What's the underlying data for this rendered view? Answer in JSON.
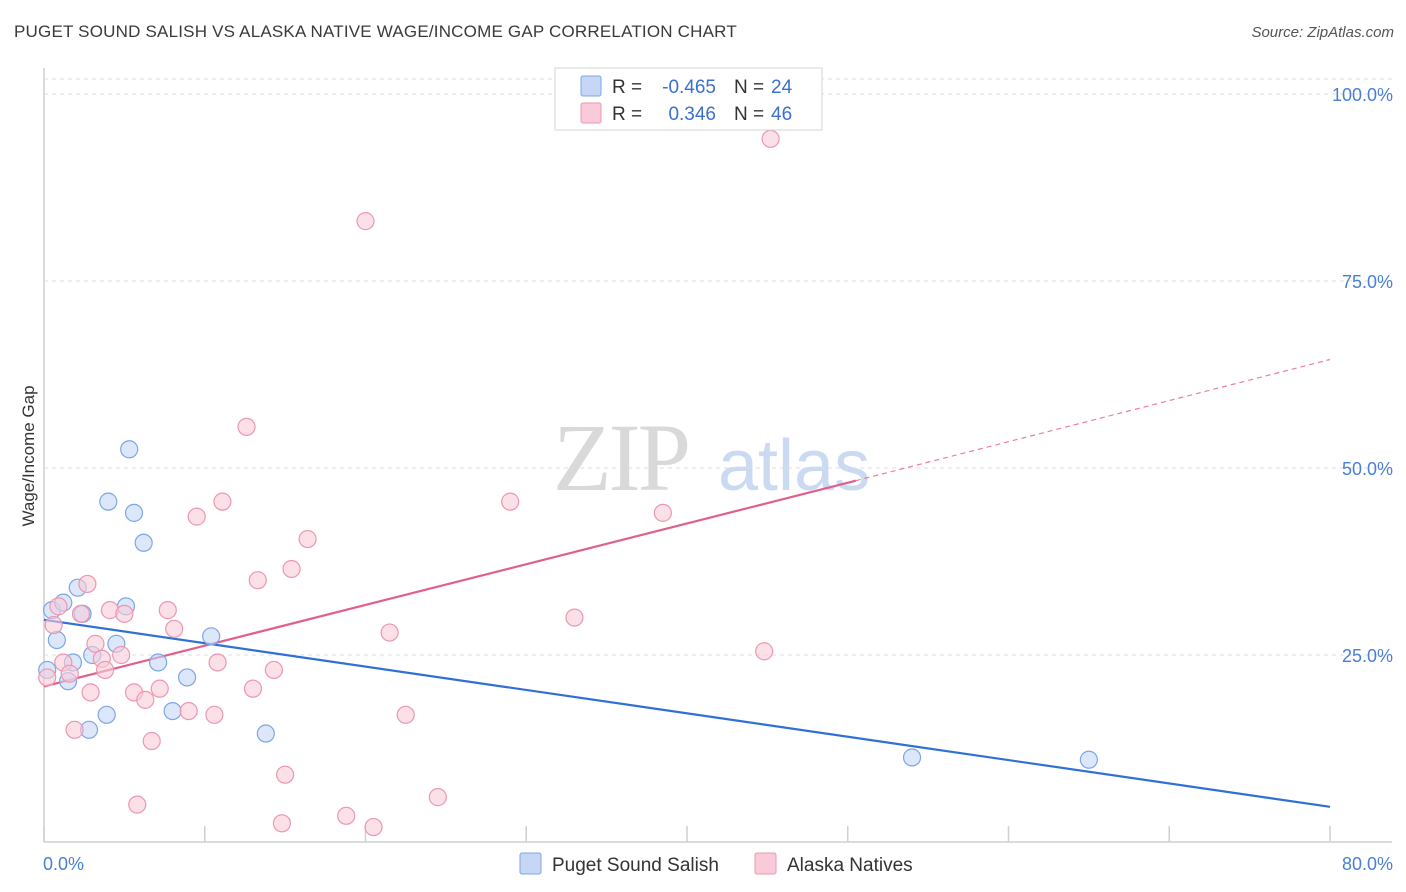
{
  "title": "PUGET SOUND SALISH VS ALASKA NATIVE WAGE/INCOME GAP CORRELATION CHART",
  "source": "Source: ZipAtlas.com",
  "watermark": {
    "zip": "ZIP",
    "atlas": "atlas"
  },
  "colors": {
    "blue_fill": "#c5d7f5",
    "blue_stroke": "#7da6e6",
    "blue_line": "#2f6fd6",
    "pink_fill": "#f9cbd9",
    "pink_stroke": "#ec97b2",
    "pink_line": "#e05f8d",
    "grid": "#dcdcdc",
    "tick_text": "#4a7fd4"
  },
  "legend": {
    "rows": [
      {
        "r_label": "R = ",
        "r_value": "-0.465",
        "n_label": "N = ",
        "n_value": "24",
        "series": "blue"
      },
      {
        "r_label": "R = ",
        "r_value": "0.346",
        "n_label": "N = ",
        "n_value": "46",
        "series": "pink"
      }
    ]
  },
  "chart_data": {
    "type": "scatter",
    "title": "PUGET SOUND SALISH VS ALASKA NATIVE WAGE/INCOME GAP CORRELATION CHART",
    "xlabel": "",
    "ylabel": "Wage/Income Gap",
    "xlim": [
      0,
      80
    ],
    "ylim": [
      0,
      102
    ],
    "x_tick_labels": [
      {
        "value": 0,
        "label": "0.0%"
      },
      {
        "value": 80,
        "label": "80.0%"
      }
    ],
    "y_tick_labels": [
      {
        "value": 25,
        "label": "25.0%"
      },
      {
        "value": 50,
        "label": "50.0%"
      },
      {
        "value": 75,
        "label": "75.0%"
      },
      {
        "value": 100,
        "label": "100.0%"
      }
    ],
    "y_gridlines": [
      25,
      50,
      75,
      100
    ],
    "series": [
      {
        "name": "Puget Sound Salish",
        "color": "blue",
        "points": [
          [
            0.2,
            23.0
          ],
          [
            0.5,
            31.0
          ],
          [
            0.8,
            27.0
          ],
          [
            1.2,
            32.0
          ],
          [
            1.5,
            21.5
          ],
          [
            1.8,
            24.0
          ],
          [
            2.1,
            34.0
          ],
          [
            2.4,
            30.5
          ],
          [
            2.8,
            15.0
          ],
          [
            3.0,
            25.0
          ],
          [
            3.9,
            17.0
          ],
          [
            4.0,
            45.5
          ],
          [
            4.5,
            26.5
          ],
          [
            5.1,
            31.5
          ],
          [
            5.3,
            52.5
          ],
          [
            5.6,
            44.0
          ],
          [
            6.2,
            40.0
          ],
          [
            7.1,
            24.0
          ],
          [
            8.0,
            17.5
          ],
          [
            8.9,
            22.0
          ],
          [
            10.4,
            27.5
          ],
          [
            13.8,
            14.5
          ],
          [
            54.0,
            11.3
          ],
          [
            65.0,
            11.0
          ]
        ],
        "trend": {
          "x_start": 0,
          "y_start": 29.7,
          "x_end": 80,
          "y_end": 4.7,
          "dashed_extension": false
        }
      },
      {
        "name": "Alaska Natives",
        "color": "pink",
        "points": [
          [
            0.2,
            22.0
          ],
          [
            0.6,
            29.0
          ],
          [
            0.9,
            31.5
          ],
          [
            1.2,
            24.0
          ],
          [
            1.6,
            22.5
          ],
          [
            1.9,
            15.0
          ],
          [
            2.3,
            30.5
          ],
          [
            2.7,
            34.5
          ],
          [
            2.9,
            20.0
          ],
          [
            3.2,
            26.5
          ],
          [
            3.6,
            24.5
          ],
          [
            3.8,
            23.0
          ],
          [
            4.1,
            31.0
          ],
          [
            4.8,
            25.0
          ],
          [
            5.0,
            30.5
          ],
          [
            5.6,
            20.0
          ],
          [
            5.8,
            5.0
          ],
          [
            6.3,
            19.0
          ],
          [
            6.7,
            13.5
          ],
          [
            7.2,
            20.5
          ],
          [
            7.7,
            31.0
          ],
          [
            8.1,
            28.5
          ],
          [
            9.0,
            17.5
          ],
          [
            9.5,
            43.5
          ],
          [
            10.6,
            17.0
          ],
          [
            10.8,
            24.0
          ],
          [
            11.1,
            45.5
          ],
          [
            12.6,
            55.5
          ],
          [
            13.0,
            20.5
          ],
          [
            13.3,
            35.0
          ],
          [
            14.3,
            23.0
          ],
          [
            14.8,
            2.5
          ],
          [
            15.0,
            9.0
          ],
          [
            15.4,
            36.5
          ],
          [
            16.4,
            40.5
          ],
          [
            18.8,
            3.5
          ],
          [
            20.0,
            83.0
          ],
          [
            20.5,
            2.0
          ],
          [
            21.5,
            28.0
          ],
          [
            22.5,
            17.0
          ],
          [
            24.5,
            6.0
          ],
          [
            29.0,
            45.5
          ],
          [
            33.0,
            30.0
          ],
          [
            38.5,
            44.0
          ],
          [
            44.8,
            25.5
          ],
          [
            45.2,
            94.0
          ]
        ],
        "trend": {
          "x_start": 0,
          "y_start": 20.8,
          "x_end": 50.5,
          "y_end": 48.3,
          "dashed_extension": true,
          "dash_x_end": 80,
          "dash_y_end": 64.5
        }
      }
    ],
    "legend_bottom": [
      "Puget Sound Salish",
      "Alaska Natives"
    ]
  }
}
